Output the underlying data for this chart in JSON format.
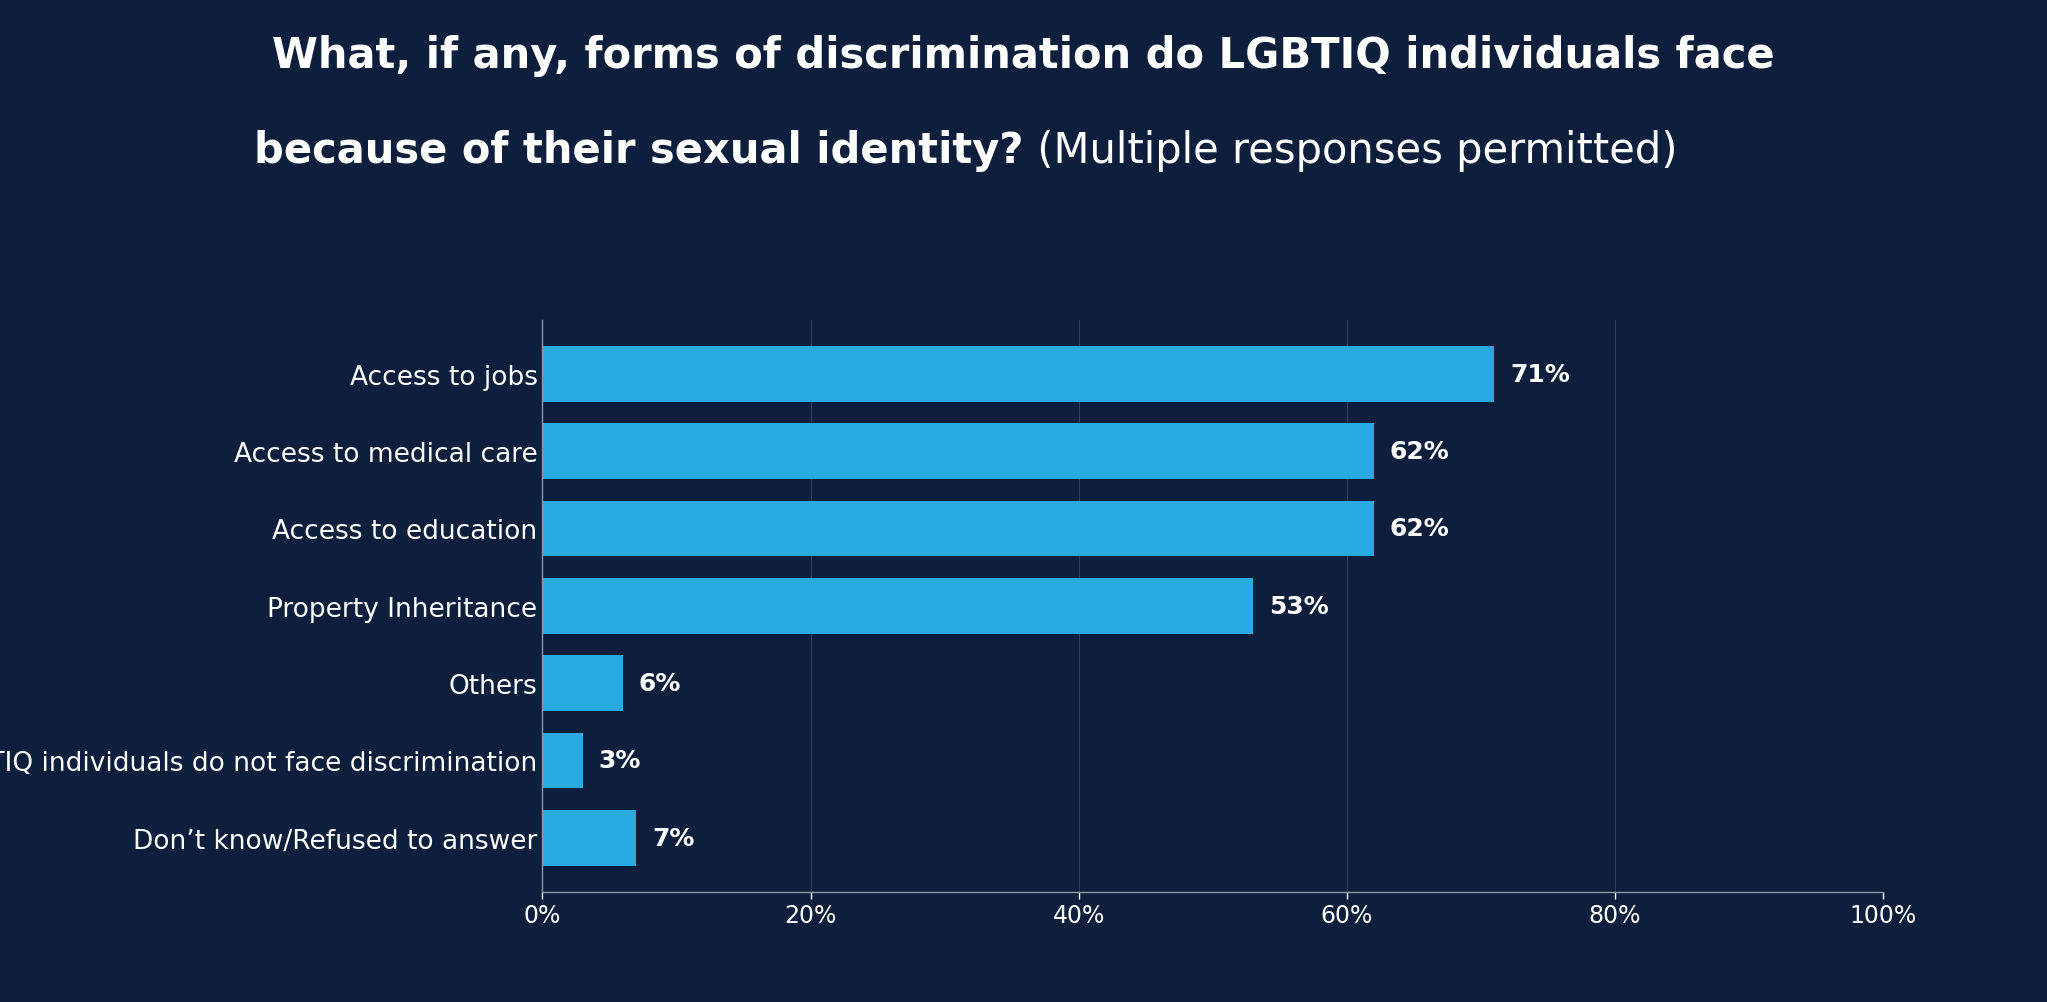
{
  "title_line1_bold": "What, if any, forms of discrimination do LGBTIQ individuals face",
  "title_line2_bold": "because of their sexual identity?",
  "title_line2_normal": " (Multiple responses permitted)",
  "categories": [
    "Access to jobs",
    "Access to medical care",
    "Access to education",
    "Property Inheritance",
    "Others",
    "LGBTIQ individuals do not face discrimination",
    "Don’t know/Refused to answer"
  ],
  "values": [
    71,
    62,
    62,
    53,
    6,
    3,
    7
  ],
  "bar_color": "#29ABE2",
  "background_color": "#0D1F3C",
  "text_color": "#FFFFFF",
  "bar_label_color": "#FFFFFF",
  "axis_color": "#8899AA",
  "xlim": [
    0,
    100
  ],
  "xticks": [
    0,
    20,
    40,
    60,
    80,
    100
  ],
  "xtick_labels": [
    "0%",
    "20%",
    "40%",
    "60%",
    "80%",
    "100%"
  ],
  "title_fontsize": 30,
  "label_fontsize": 19,
  "tick_fontsize": 17,
  "bar_label_fontsize": 18,
  "bar_height": 0.72
}
